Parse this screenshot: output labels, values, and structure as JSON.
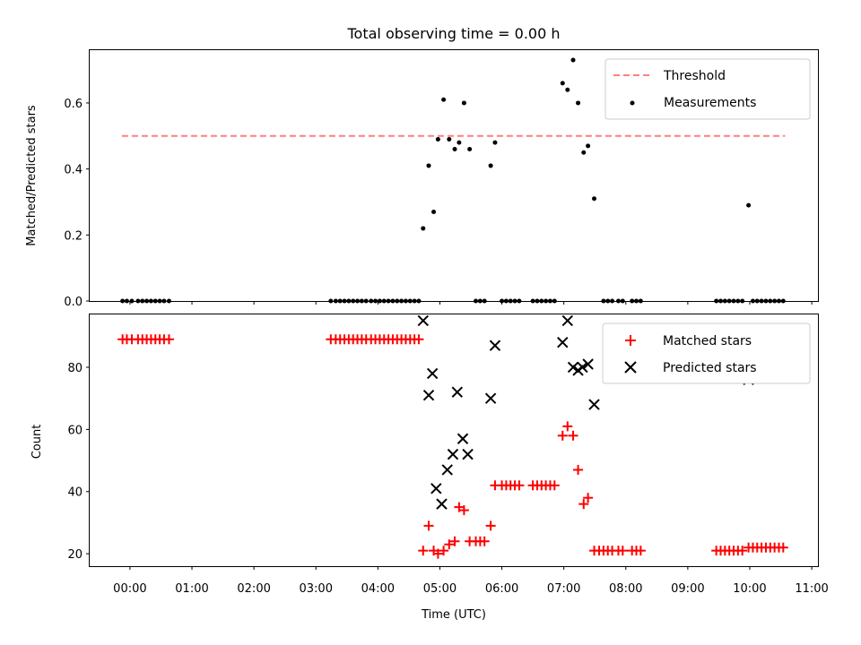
{
  "chart_data": [
    {
      "type": "scatter",
      "title": "Total observing time = 0.00 h",
      "ylabel": "Matched/Predicted stars",
      "xlabel": "",
      "xlim": [
        -0.65,
        11.1
      ],
      "ylim": [
        0,
        0.76
      ],
      "y_ticks": [
        0.0,
        0.2,
        0.4,
        0.6
      ],
      "y_tick_labels": [
        "0.0",
        "0.2",
        "0.4",
        "0.6"
      ],
      "grid": false,
      "legend_position": "top-right",
      "threshold": {
        "name": "Threshold",
        "value": 0.5,
        "x_range": [
          -0.13,
          10.57
        ],
        "color": "#ff7f7f",
        "style": "dashed"
      },
      "series": [
        {
          "name": "Measurements",
          "color": "#000000",
          "marker": "dot",
          "points": [
            [
              -0.12,
              0
            ],
            [
              -0.05,
              0
            ],
            [
              0.03,
              0
            ],
            [
              0.13,
              0
            ],
            [
              0.2,
              0
            ],
            [
              0.27,
              0
            ],
            [
              0.34,
              0
            ],
            [
              0.41,
              0
            ],
            [
              0.48,
              0
            ],
            [
              0.55,
              0
            ],
            [
              0.63,
              0
            ],
            [
              3.24,
              0
            ],
            [
              3.32,
              0
            ],
            [
              3.39,
              0
            ],
            [
              3.46,
              0
            ],
            [
              3.53,
              0
            ],
            [
              3.6,
              0
            ],
            [
              3.67,
              0
            ],
            [
              3.74,
              0
            ],
            [
              3.81,
              0
            ],
            [
              3.89,
              0
            ],
            [
              3.96,
              0
            ],
            [
              4.03,
              0
            ],
            [
              4.1,
              0
            ],
            [
              4.17,
              0
            ],
            [
              4.24,
              0
            ],
            [
              4.31,
              0
            ],
            [
              4.38,
              0
            ],
            [
              4.45,
              0
            ],
            [
              4.52,
              0
            ],
            [
              4.59,
              0
            ],
            [
              4.66,
              0
            ],
            [
              4.73,
              0.22
            ],
            [
              4.82,
              0.41
            ],
            [
              4.9,
              0.27
            ],
            [
              4.97,
              0.49
            ],
            [
              5.06,
              0.61
            ],
            [
              5.15,
              0.49
            ],
            [
              5.24,
              0.46
            ],
            [
              5.31,
              0.48
            ],
            [
              5.39,
              0.6
            ],
            [
              5.48,
              0.46
            ],
            [
              5.82,
              0.41
            ],
            [
              5.89,
              0.48
            ],
            [
              5.58,
              0
            ],
            [
              5.65,
              0
            ],
            [
              5.72,
              0
            ],
            [
              6.0,
              0
            ],
            [
              6.07,
              0
            ],
            [
              6.14,
              0
            ],
            [
              6.21,
              0
            ],
            [
              6.28,
              0
            ],
            [
              6.5,
              0
            ],
            [
              6.57,
              0
            ],
            [
              6.64,
              0
            ],
            [
              6.71,
              0
            ],
            [
              6.78,
              0
            ],
            [
              6.85,
              0
            ],
            [
              6.98,
              0.66
            ],
            [
              7.06,
              0.64
            ],
            [
              7.15,
              0.73
            ],
            [
              7.23,
              0.6
            ],
            [
              7.32,
              0.45
            ],
            [
              7.39,
              0.47
            ],
            [
              7.49,
              0.31
            ],
            [
              7.64,
              0
            ],
            [
              7.71,
              0
            ],
            [
              7.78,
              0
            ],
            [
              7.88,
              0
            ],
            [
              7.95,
              0
            ],
            [
              8.1,
              0
            ],
            [
              8.17,
              0
            ],
            [
              8.24,
              0
            ],
            [
              9.46,
              0
            ],
            [
              9.53,
              0
            ],
            [
              9.6,
              0
            ],
            [
              9.67,
              0
            ],
            [
              9.74,
              0
            ],
            [
              9.81,
              0
            ],
            [
              9.88,
              0
            ],
            [
              9.98,
              0.29
            ],
            [
              10.05,
              0
            ],
            [
              10.12,
              0
            ],
            [
              10.19,
              0
            ],
            [
              10.26,
              0
            ],
            [
              10.33,
              0
            ],
            [
              10.4,
              0
            ],
            [
              10.47,
              0
            ],
            [
              10.54,
              0
            ]
          ]
        }
      ]
    },
    {
      "type": "scatter",
      "title": "",
      "ylabel": "Count",
      "xlabel": "Time (UTC)",
      "xlim": [
        -0.65,
        11.1
      ],
      "ylim": [
        16,
        97
      ],
      "y_ticks": [
        20,
        40,
        60,
        80
      ],
      "y_tick_labels": [
        "20",
        "40",
        "60",
        "80"
      ],
      "x_ticks": [
        0,
        1,
        2,
        3,
        4,
        5,
        6,
        7,
        8,
        9,
        10,
        11
      ],
      "x_tick_labels": [
        "00:00",
        "01:00",
        "02:00",
        "03:00",
        "04:00",
        "05:00",
        "06:00",
        "07:00",
        "08:00",
        "09:00",
        "10:00",
        "11:00"
      ],
      "grid": false,
      "legend_position": "top-right",
      "series": [
        {
          "name": "Matched stars",
          "color": "#ff0000",
          "marker": "plus",
          "points": [
            [
              -0.12,
              89
            ],
            [
              -0.05,
              89
            ],
            [
              0.03,
              89
            ],
            [
              0.13,
              89
            ],
            [
              0.2,
              89
            ],
            [
              0.27,
              89
            ],
            [
              0.34,
              89
            ],
            [
              0.41,
              89
            ],
            [
              0.48,
              89
            ],
            [
              0.55,
              89
            ],
            [
              0.63,
              89
            ],
            [
              3.24,
              89
            ],
            [
              3.32,
              89
            ],
            [
              3.39,
              89
            ],
            [
              3.46,
              89
            ],
            [
              3.53,
              89
            ],
            [
              3.6,
              89
            ],
            [
              3.67,
              89
            ],
            [
              3.74,
              89
            ],
            [
              3.81,
              89
            ],
            [
              3.89,
              89
            ],
            [
              3.96,
              89
            ],
            [
              4.03,
              89
            ],
            [
              4.1,
              89
            ],
            [
              4.17,
              89
            ],
            [
              4.24,
              89
            ],
            [
              4.31,
              89
            ],
            [
              4.38,
              89
            ],
            [
              4.45,
              89
            ],
            [
              4.52,
              89
            ],
            [
              4.59,
              89
            ],
            [
              4.66,
              89
            ],
            [
              4.73,
              21
            ],
            [
              4.82,
              29
            ],
            [
              4.9,
              21
            ],
            [
              4.97,
              20
            ],
            [
              5.06,
              21
            ],
            [
              5.15,
              23
            ],
            [
              5.24,
              24
            ],
            [
              5.31,
              35
            ],
            [
              5.39,
              34
            ],
            [
              5.48,
              24
            ],
            [
              5.58,
              24
            ],
            [
              5.65,
              24
            ],
            [
              5.72,
              24
            ],
            [
              5.82,
              29
            ],
            [
              5.89,
              42
            ],
            [
              6.0,
              42
            ],
            [
              6.07,
              42
            ],
            [
              6.14,
              42
            ],
            [
              6.21,
              42
            ],
            [
              6.28,
              42
            ],
            [
              6.5,
              42
            ],
            [
              6.57,
              42
            ],
            [
              6.64,
              42
            ],
            [
              6.71,
              42
            ],
            [
              6.78,
              42
            ],
            [
              6.85,
              42
            ],
            [
              6.98,
              58
            ],
            [
              7.06,
              61
            ],
            [
              7.15,
              58
            ],
            [
              7.23,
              47
            ],
            [
              7.32,
              36
            ],
            [
              7.39,
              38
            ],
            [
              7.49,
              21
            ],
            [
              7.57,
              21
            ],
            [
              7.64,
              21
            ],
            [
              7.71,
              21
            ],
            [
              7.78,
              21
            ],
            [
              7.88,
              21
            ],
            [
              7.95,
              21
            ],
            [
              8.1,
              21
            ],
            [
              8.17,
              21
            ],
            [
              8.24,
              21
            ],
            [
              9.46,
              21
            ],
            [
              9.53,
              21
            ],
            [
              9.6,
              21
            ],
            [
              9.67,
              21
            ],
            [
              9.74,
              21
            ],
            [
              9.81,
              21
            ],
            [
              9.88,
              21
            ],
            [
              9.98,
              22
            ],
            [
              10.05,
              22
            ],
            [
              10.12,
              22
            ],
            [
              10.19,
              22
            ],
            [
              10.26,
              22
            ],
            [
              10.33,
              22
            ],
            [
              10.4,
              22
            ],
            [
              10.47,
              22
            ],
            [
              10.54,
              22
            ]
          ]
        },
        {
          "name": "Predicted stars",
          "color": "#000000",
          "marker": "x",
          "points": [
            [
              4.73,
              95
            ],
            [
              4.82,
              71
            ],
            [
              4.88,
              78
            ],
            [
              4.94,
              41
            ],
            [
              5.03,
              36
            ],
            [
              5.12,
              47
            ],
            [
              5.21,
              52
            ],
            [
              5.28,
              72
            ],
            [
              5.37,
              57
            ],
            [
              5.45,
              52
            ],
            [
              5.82,
              70
            ],
            [
              5.89,
              87
            ],
            [
              6.98,
              88
            ],
            [
              7.06,
              95
            ],
            [
              7.15,
              80
            ],
            [
              7.23,
              79
            ],
            [
              7.3,
              80
            ],
            [
              7.39,
              81
            ],
            [
              7.49,
              68
            ],
            [
              9.98,
              76
            ]
          ]
        }
      ]
    }
  ]
}
